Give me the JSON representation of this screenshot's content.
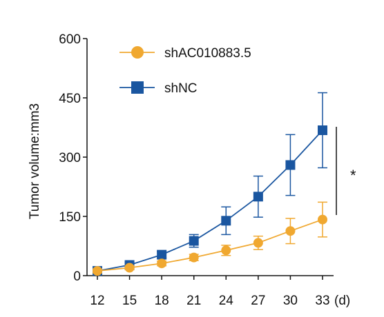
{
  "chart_data": {
    "type": "line",
    "x": [
      12,
      15,
      18,
      21,
      24,
      27,
      30,
      33
    ],
    "x_ticks": [
      "12",
      "15",
      "18",
      "21",
      "24",
      "27",
      "30",
      "33"
    ],
    "x_unit": "(d)",
    "ylabel": "Tumor volume:mm3",
    "ylim": [
      0,
      600
    ],
    "y_ticks": [
      "0",
      "150",
      "300",
      "450",
      "600"
    ],
    "grid": false,
    "legend_position": "top-left",
    "significance": "*",
    "series": [
      {
        "name": "shAC010883.5",
        "color": "#F0A830",
        "marker": "circle",
        "values": [
          12,
          20,
          31,
          46,
          64,
          83,
          113,
          142
        ],
        "errors": [
          5,
          5,
          6,
          8,
          13,
          17,
          32,
          44
        ]
      },
      {
        "name": "shNC",
        "color": "#1A56A0",
        "marker": "square",
        "values": [
          12,
          27,
          53,
          88,
          139,
          200,
          280,
          368
        ],
        "errors": [
          5,
          6,
          8,
          16,
          35,
          52,
          77,
          95
        ]
      }
    ]
  }
}
